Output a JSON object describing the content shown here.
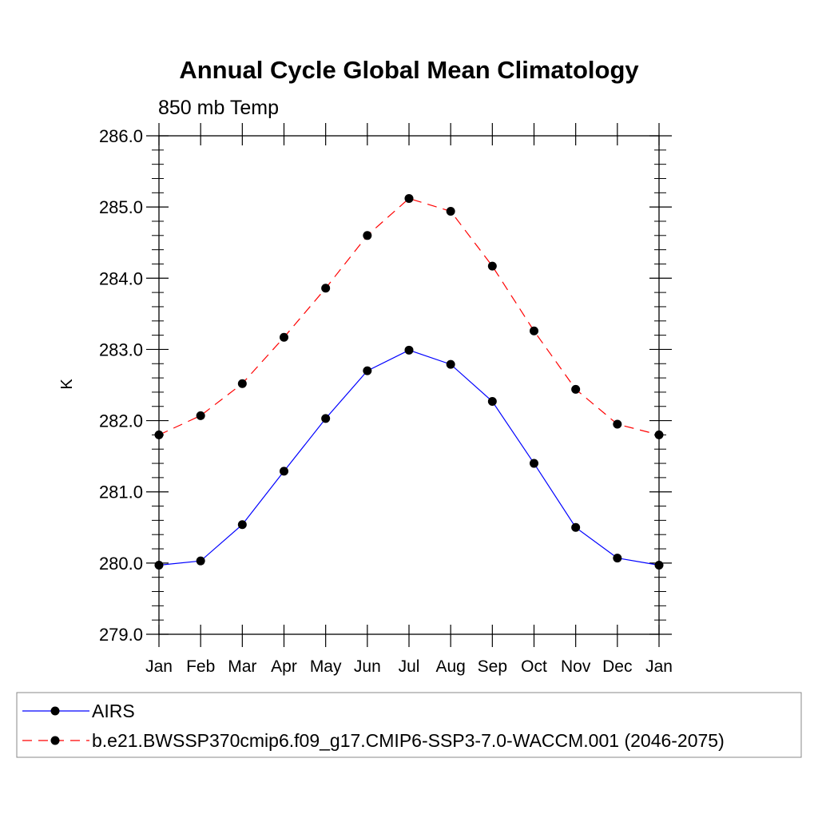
{
  "chart_data": {
    "type": "line",
    "title": "Annual Cycle Global Mean Climatology",
    "subtitle": "850 mb Temp",
    "xlabel": "",
    "ylabel": "K",
    "categories": [
      "Jan",
      "Feb",
      "Mar",
      "Apr",
      "May",
      "Jun",
      "Jul",
      "Aug",
      "Sep",
      "Oct",
      "Nov",
      "Dec",
      "Jan"
    ],
    "ylim": [
      279.0,
      286.0
    ],
    "yticks": [
      "279.0",
      "280.0",
      "281.0",
      "282.0",
      "283.0",
      "284.0",
      "285.0",
      "286.0"
    ],
    "grid": false,
    "legend_position": "bottom",
    "series": [
      {
        "name": "AIRS",
        "color": "#0000ff",
        "dash": "solid",
        "marker": "filled-circle",
        "values": [
          279.97,
          280.03,
          280.54,
          281.29,
          282.03,
          282.7,
          282.99,
          282.79,
          282.27,
          281.4,
          280.5,
          280.07,
          279.97
        ]
      },
      {
        "name": "b.e21.BWSSP370cmip6.f09_g17.CMIP6-SSP3-7.0-WACCM.001 (2046-2075)",
        "color": "#ff0000",
        "dash": "dashed",
        "marker": "filled-circle",
        "values": [
          281.8,
          282.07,
          282.52,
          283.17,
          283.86,
          284.6,
          285.12,
          284.94,
          284.17,
          283.26,
          282.44,
          281.95,
          281.8
        ]
      }
    ]
  }
}
